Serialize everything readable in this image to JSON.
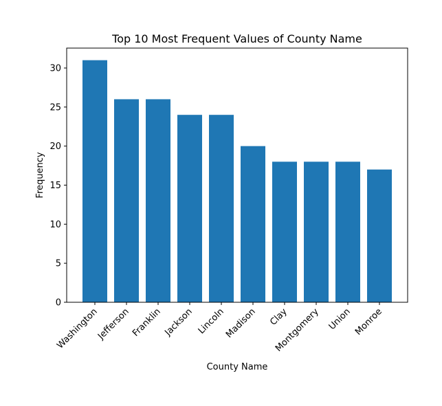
{
  "chart_data": {
    "type": "bar",
    "title": "Top 10 Most Frequent Values of County Name",
    "xlabel": "County Name",
    "ylabel": "Frequency",
    "categories": [
      "Washington",
      "Jefferson",
      "Franklin",
      "Jackson",
      "Lincoln",
      "Madison",
      "Clay",
      "Montgomery",
      "Union",
      "Monroe"
    ],
    "values": [
      31,
      26,
      26,
      24,
      24,
      20,
      18,
      18,
      18,
      17
    ],
    "ylim": [
      0,
      32.55
    ],
    "yticks": [
      0,
      5,
      10,
      15,
      20,
      25,
      30
    ],
    "bar_color": "#1f77b4",
    "grid": false
  }
}
